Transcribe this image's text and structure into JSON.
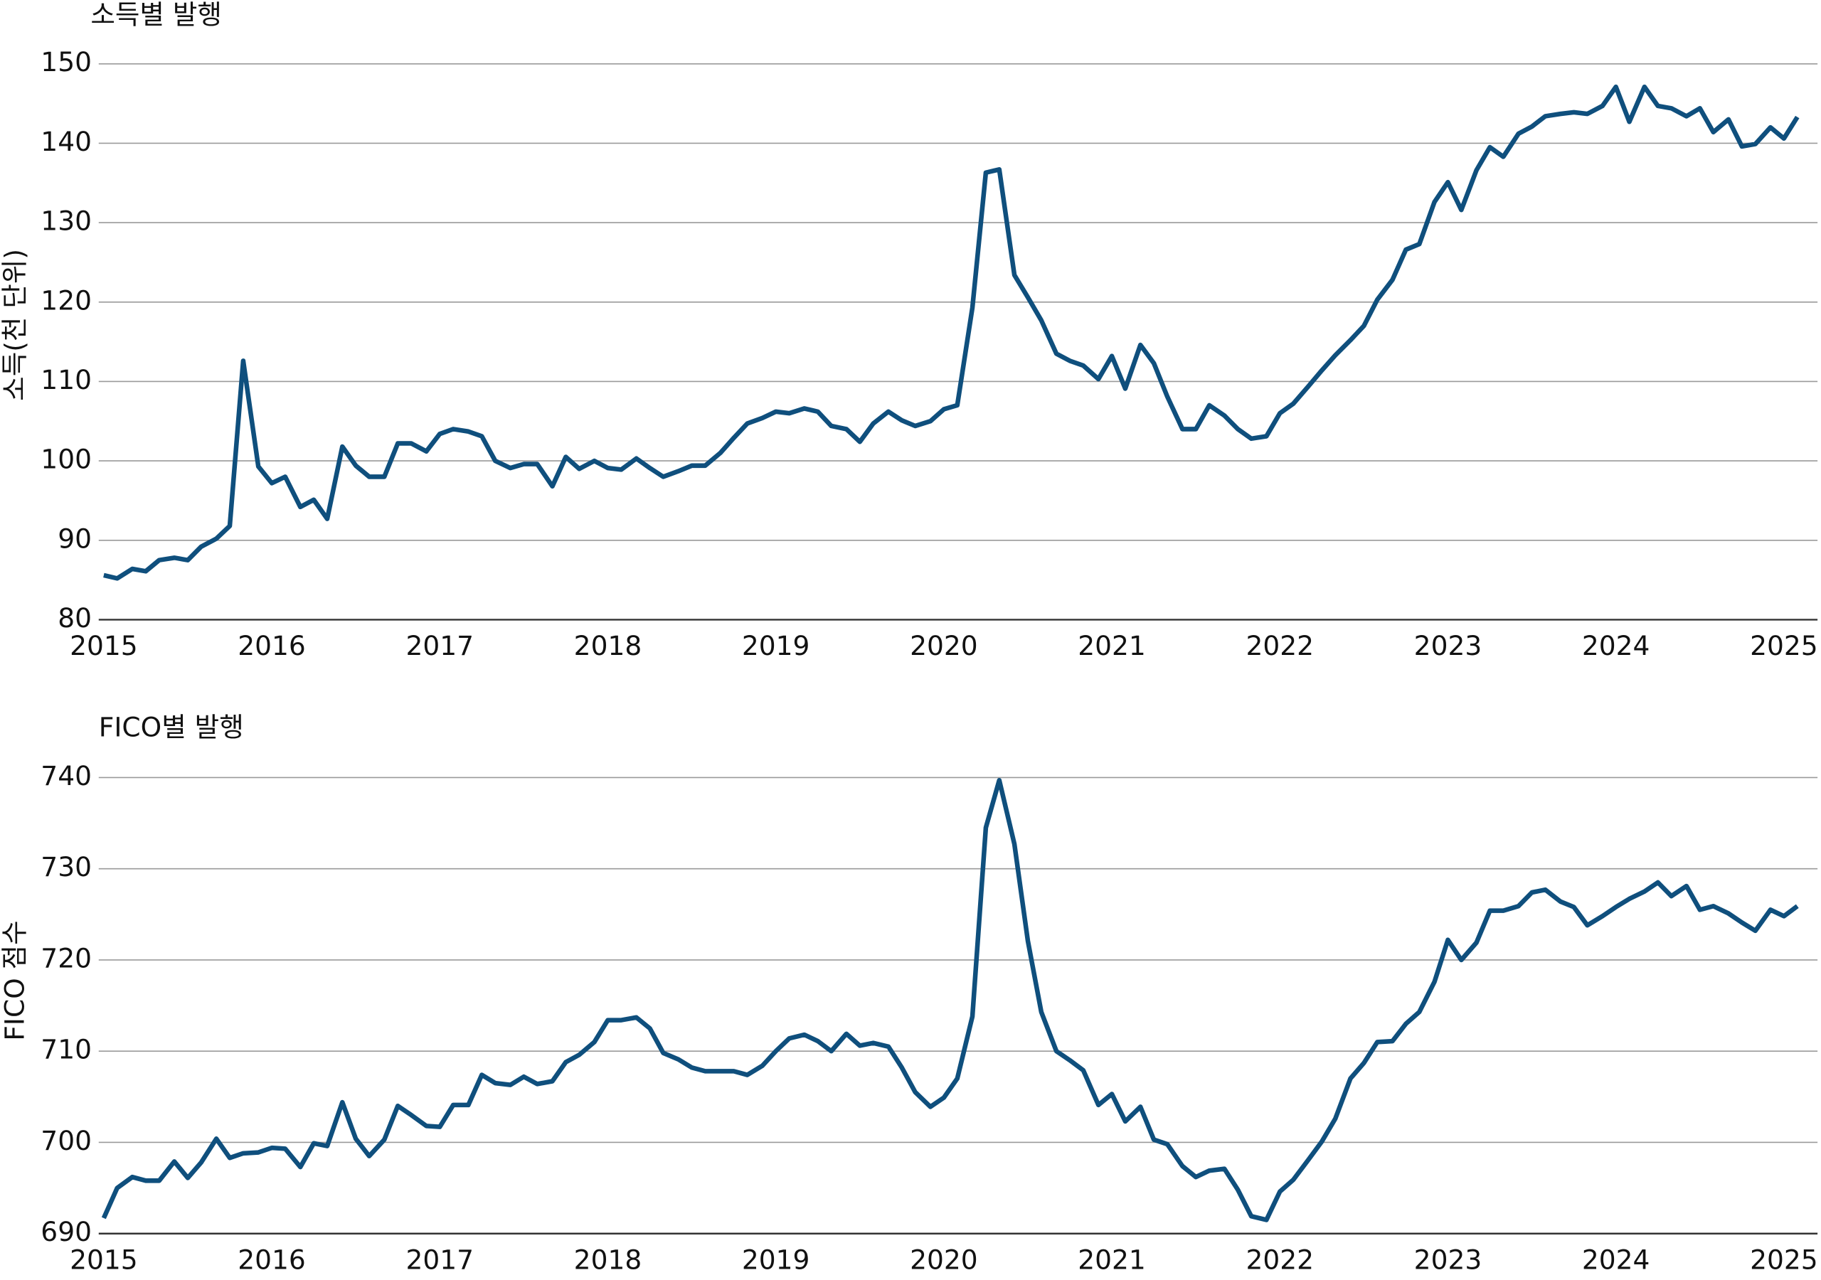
{
  "chart_data": [
    {
      "type": "line",
      "title": "소득별 발행",
      "y_label": "소득(천 단위)",
      "color": "#0f4f7d",
      "x": [
        2015,
        2015.08,
        2015.17,
        2015.25,
        2015.33,
        2015.42,
        2015.5,
        2015.58,
        2015.67,
        2015.75,
        2015.83,
        2015.92,
        2016,
        2016.08,
        2016.17,
        2016.25,
        2016.33,
        2016.42,
        2016.5,
        2016.58,
        2016.67,
        2016.75,
        2016.83,
        2016.92,
        2017,
        2017.08,
        2017.17,
        2017.25,
        2017.33,
        2017.42,
        2017.5,
        2017.58,
        2017.67,
        2017.75,
        2017.83,
        2017.92,
        2018,
        2018.08,
        2018.17,
        2018.25,
        2018.33,
        2018.42,
        2018.5,
        2018.58,
        2018.67,
        2018.75,
        2018.83,
        2018.92,
        2019,
        2019.08,
        2019.17,
        2019.25,
        2019.33,
        2019.42,
        2019.5,
        2019.58,
        2019.67,
        2019.75,
        2019.83,
        2019.92,
        2020,
        2020.08,
        2020.17,
        2020.25,
        2020.33,
        2020.42,
        2020.5,
        2020.58,
        2020.67,
        2020.75,
        2020.83,
        2020.92,
        2021,
        2021.08,
        2021.17,
        2021.25,
        2021.33,
        2021.42,
        2021.5,
        2021.58,
        2021.67,
        2021.75,
        2021.83,
        2021.92,
        2022,
        2022.08,
        2022.17,
        2022.25,
        2022.33,
        2022.42,
        2022.5,
        2022.58,
        2022.67,
        2022.75,
        2022.83,
        2022.92,
        2023,
        2023.08,
        2023.17,
        2023.25,
        2023.33,
        2023.42,
        2023.5,
        2023.58,
        2023.67,
        2023.75,
        2023.83,
        2023.92,
        2024,
        2024.08,
        2024.17,
        2024.25,
        2024.33,
        2024.42,
        2024.5,
        2024.58,
        2024.67,
        2024.75,
        2024.83,
        2024.92,
        2025,
        2025.08
      ],
      "values": [
        85.6,
        85.2,
        86.4,
        86.1,
        87.5,
        87.8,
        87.5,
        89.2,
        90.2,
        91.8,
        112.6,
        99.3,
        97.2,
        98.0,
        94.2,
        95.1,
        92.7,
        101.8,
        99.4,
        98.0,
        98.0,
        102.2,
        102.2,
        101.2,
        103.4,
        104.0,
        103.7,
        103.1,
        100.0,
        99.1,
        99.6,
        99.6,
        96.8,
        100.5,
        99.0,
        100.0,
        99.1,
        98.9,
        100.3,
        99.1,
        98.0,
        98.7,
        99.4,
        99.4,
        101.0,
        102.9,
        104.7,
        105.4,
        106.2,
        106.0,
        106.6,
        106.2,
        104.4,
        104.0,
        102.4,
        104.7,
        106.2,
        105.1,
        104.4,
        105.0,
        106.5,
        107.0,
        119.3,
        136.3,
        136.7,
        123.4,
        120.6,
        117.7,
        113.5,
        112.6,
        112.0,
        110.3,
        113.2,
        109.1,
        114.6,
        112.3,
        108.1,
        104.0,
        104.0,
        107.0,
        105.7,
        104.0,
        102.8,
        103.1,
        106.0,
        107.2,
        109.4,
        111.4,
        113.3,
        115.2,
        117.0,
        120.3,
        122.8,
        126.6,
        127.3,
        132.6,
        135.1,
        131.6,
        136.6,
        139.5,
        138.3,
        141.2,
        142.1,
        143.4,
        143.7,
        143.9,
        143.7,
        144.7,
        147.1,
        142.7,
        147.1,
        144.7,
        144.4,
        143.4,
        144.4,
        141.4,
        143.0,
        139.6,
        139.9,
        142.0,
        140.6,
        143.3
      ],
      "xlim": [
        2014.97,
        2025.2
      ],
      "xticks": [
        2015,
        2016,
        2017,
        2018,
        2019,
        2020,
        2021,
        2022,
        2023,
        2024,
        2025
      ],
      "ylim": [
        80,
        150
      ],
      "yticks": [
        80,
        90,
        100,
        110,
        120,
        130,
        140,
        150
      ],
      "grid": true
    },
    {
      "type": "line",
      "title": "FICO별 발행",
      "y_label": "FICO 점수",
      "color": "#0f4f7d",
      "x": [
        2015,
        2015.08,
        2015.17,
        2015.25,
        2015.33,
        2015.42,
        2015.5,
        2015.58,
        2015.67,
        2015.75,
        2015.83,
        2015.92,
        2016,
        2016.08,
        2016.17,
        2016.25,
        2016.33,
        2016.42,
        2016.5,
        2016.58,
        2016.67,
        2016.75,
        2016.83,
        2016.92,
        2017,
        2017.08,
        2017.17,
        2017.25,
        2017.33,
        2017.42,
        2017.5,
        2017.58,
        2017.67,
        2017.75,
        2017.83,
        2017.92,
        2018,
        2018.08,
        2018.17,
        2018.25,
        2018.33,
        2018.42,
        2018.5,
        2018.58,
        2018.67,
        2018.75,
        2018.83,
        2018.92,
        2019,
        2019.08,
        2019.17,
        2019.25,
        2019.33,
        2019.42,
        2019.5,
        2019.58,
        2019.67,
        2019.75,
        2019.83,
        2019.92,
        2020,
        2020.08,
        2020.17,
        2020.25,
        2020.33,
        2020.42,
        2020.5,
        2020.58,
        2020.67,
        2020.75,
        2020.83,
        2020.92,
        2021,
        2021.08,
        2021.17,
        2021.25,
        2021.33,
        2021.42,
        2021.5,
        2021.58,
        2021.67,
        2021.75,
        2021.83,
        2021.92,
        2022,
        2022.08,
        2022.17,
        2022.25,
        2022.33,
        2022.42,
        2022.5,
        2022.58,
        2022.67,
        2022.75,
        2022.83,
        2022.92,
        2023,
        2023.08,
        2023.17,
        2023.25,
        2023.33,
        2023.42,
        2023.5,
        2023.58,
        2023.67,
        2023.75,
        2023.83,
        2023.92,
        2024,
        2024.08,
        2024.17,
        2024.25,
        2024.33,
        2024.42,
        2024.5,
        2024.58,
        2024.67,
        2024.75,
        2024.83,
        2024.92,
        2025,
        2025.08
      ],
      "values": [
        691.7,
        695.0,
        696.2,
        695.8,
        695.8,
        697.9,
        696.1,
        697.8,
        700.4,
        698.3,
        698.8,
        698.9,
        699.4,
        699.3,
        697.3,
        699.9,
        699.6,
        704.4,
        700.4,
        698.5,
        700.3,
        704.0,
        703.0,
        701.8,
        701.7,
        704.1,
        704.1,
        707.4,
        706.5,
        706.3,
        707.2,
        706.4,
        706.7,
        708.8,
        709.6,
        711.0,
        713.4,
        713.4,
        713.7,
        712.5,
        709.8,
        709.1,
        708.2,
        707.8,
        707.8,
        707.8,
        707.4,
        708.4,
        710.0,
        711.4,
        711.8,
        711.1,
        710.0,
        711.9,
        710.6,
        710.9,
        710.5,
        708.2,
        705.5,
        703.9,
        704.9,
        707.0,
        713.8,
        734.5,
        739.7,
        732.7,
        722.1,
        714.3,
        710.0,
        709.0,
        707.9,
        704.1,
        705.3,
        702.3,
        703.9,
        700.3,
        699.8,
        697.4,
        696.2,
        696.9,
        697.1,
        694.8,
        691.9,
        691.5,
        694.6,
        695.9,
        698.1,
        700.1,
        702.6,
        707.0,
        708.7,
        711.0,
        711.1,
        713.0,
        714.3,
        717.6,
        722.2,
        720.0,
        721.9,
        725.4,
        725.4,
        725.9,
        727.4,
        727.7,
        726.4,
        725.8,
        723.8,
        724.8,
        725.8,
        726.7,
        727.5,
        728.5,
        727.0,
        728.1,
        725.5,
        725.9,
        725.1,
        724.1,
        723.2,
        725.5,
        724.8,
        725.9
      ],
      "xlim": [
        2014.97,
        2025.2
      ],
      "xticks": [
        2015,
        2016,
        2017,
        2018,
        2019,
        2020,
        2021,
        2022,
        2023,
        2024,
        2025
      ],
      "ylim": [
        690,
        740
      ],
      "yticks": [
        690,
        700,
        710,
        720,
        730,
        740
      ],
      "grid": true
    }
  ]
}
